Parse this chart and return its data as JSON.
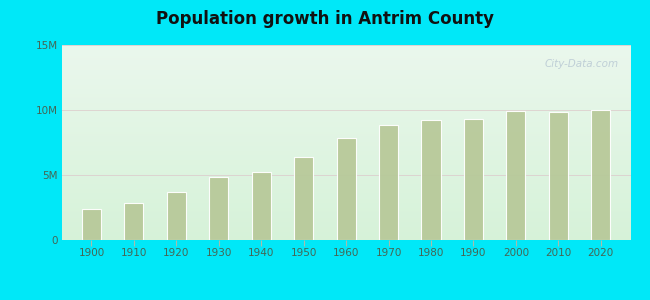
{
  "title": "Population growth in Antrim County",
  "years": [
    1900,
    1910,
    1920,
    1930,
    1940,
    1950,
    1960,
    1970,
    1980,
    1990,
    2000,
    2010,
    2020
  ],
  "michigan_pop": [
    2420000,
    2810000,
    3668000,
    4842000,
    5256000,
    6371000,
    7823000,
    8875000,
    9262000,
    9295000,
    9938000,
    9884000,
    10037000
  ],
  "bar_color": "#b8c99a",
  "bar_edge_color": "#b8c99a",
  "antrim_color": "#ee88dd",
  "michigan_legend_color": "#c8d4a0",
  "outer_bg": "#00e8f8",
  "ylim": [
    0,
    15000000
  ],
  "yticks": [
    0,
    5000000,
    10000000,
    15000000
  ],
  "ytick_labels": [
    "0",
    "5M",
    "10M",
    "15M"
  ],
  "watermark": "City-Data.com",
  "bar_width": 4.5,
  "grid_color": "#ddcccc",
  "tick_color": "#446655",
  "bg_top_color": "#eafaf0",
  "bg_bottom_color": "#d0f0e0"
}
